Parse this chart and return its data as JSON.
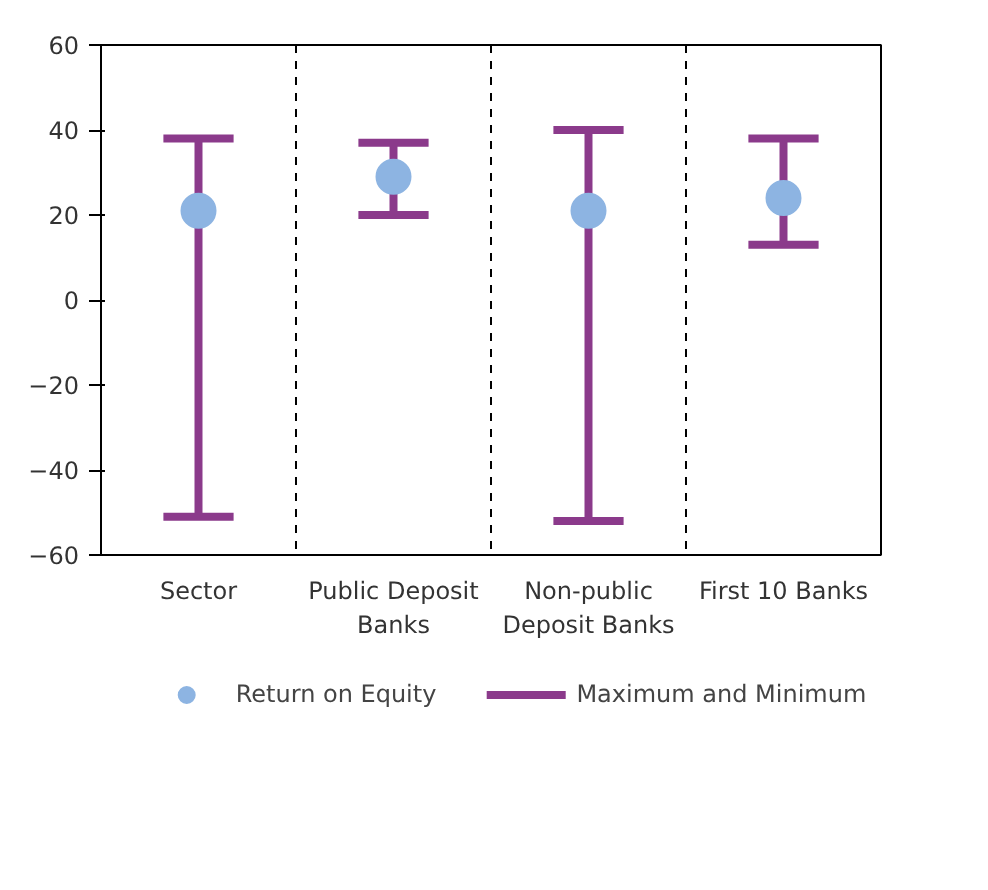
{
  "chart_data": {
    "type": "scatter",
    "categories": [
      "Sector",
      "Public Deposit Banks",
      "Non-public Deposit Banks",
      "First 10 Banks"
    ],
    "series": [
      {
        "name": "Return on Equity",
        "color": "#8db4e2",
        "values": [
          21,
          29,
          21,
          24
        ],
        "errors": [
          [
            -51,
            38
          ],
          [
            20,
            37
          ],
          [
            -52,
            40
          ],
          [
            13,
            38
          ]
        ]
      }
    ],
    "annotations": [
      "Maximum and Minimum"
    ],
    "ylim": [
      -60,
      60
    ],
    "yticks": [
      -60,
      -40,
      -20,
      0,
      20,
      40,
      60
    ],
    "grid": "x",
    "legend": "bottom",
    "marker": "circle"
  }
}
